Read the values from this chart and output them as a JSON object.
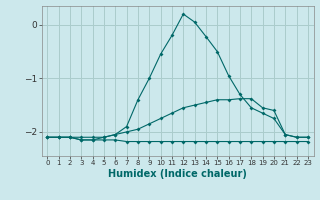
{
  "title": "",
  "xlabel": "Humidex (Indice chaleur)",
  "background_color": "#cce8ec",
  "grid_color": "#aacccc",
  "line_color": "#006868",
  "xlim": [
    -0.5,
    23.5
  ],
  "ylim": [
    -2.45,
    0.35
  ],
  "yticks": [
    0,
    -1,
    -2
  ],
  "xtick_labels": [
    "0",
    "1",
    "2",
    "3",
    "4",
    "5",
    "6",
    "7",
    "8",
    "9",
    "10",
    "11",
    "12",
    "13",
    "14",
    "15",
    "16",
    "17",
    "18",
    "19",
    "20",
    "21",
    "22",
    "23"
  ],
  "line1_x": [
    0,
    1,
    2,
    3,
    4,
    5,
    6,
    7,
    8,
    9,
    10,
    11,
    12,
    13,
    14,
    15,
    16,
    17,
    18,
    19,
    20,
    21,
    22,
    23
  ],
  "line1_y": [
    -2.1,
    -2.1,
    -2.1,
    -2.15,
    -2.15,
    -2.15,
    -2.15,
    -2.18,
    -2.18,
    -2.18,
    -2.18,
    -2.18,
    -2.18,
    -2.18,
    -2.18,
    -2.18,
    -2.18,
    -2.18,
    -2.18,
    -2.18,
    -2.18,
    -2.18,
    -2.18,
    -2.18
  ],
  "line2_x": [
    0,
    1,
    2,
    3,
    4,
    5,
    6,
    7,
    8,
    9,
    10,
    11,
    12,
    13,
    14,
    15,
    16,
    17,
    18,
    19,
    20,
    21,
    22,
    23
  ],
  "line2_y": [
    -2.1,
    -2.1,
    -2.1,
    -2.1,
    -2.1,
    -2.1,
    -2.05,
    -2.0,
    -1.95,
    -1.85,
    -1.75,
    -1.65,
    -1.55,
    -1.5,
    -1.45,
    -1.4,
    -1.4,
    -1.38,
    -1.38,
    -1.55,
    -1.6,
    -2.05,
    -2.1,
    -2.1
  ],
  "line3_x": [
    0,
    1,
    2,
    3,
    4,
    5,
    6,
    7,
    8,
    9,
    10,
    11,
    12,
    13,
    14,
    15,
    16,
    17,
    18,
    19,
    20,
    21,
    22,
    23
  ],
  "line3_y": [
    -2.1,
    -2.1,
    -2.1,
    -2.15,
    -2.15,
    -2.1,
    -2.05,
    -1.9,
    -1.4,
    -1.0,
    -0.55,
    -0.2,
    0.2,
    0.05,
    -0.22,
    -0.5,
    -0.95,
    -1.3,
    -1.55,
    -1.65,
    -1.75,
    -2.05,
    -2.1,
    -2.1
  ]
}
